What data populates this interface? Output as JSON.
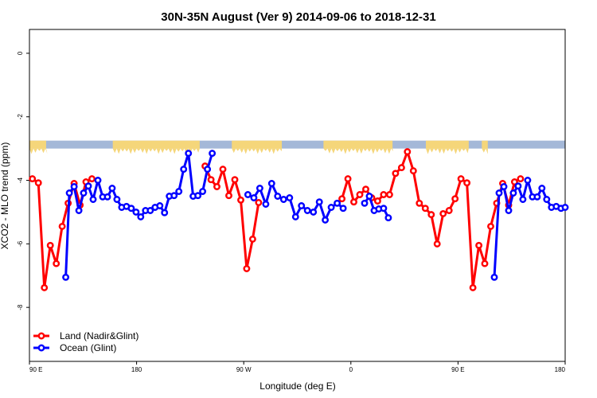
{
  "chart_data": {
    "type": "line",
    "title": "30N-35N August (Ver 9)   2014-09-06 to 2018-12-31",
    "xlabel": "Longitude (deg E)",
    "ylabel": "XCO2 - MLO trend (ppm)",
    "xlim": [
      90,
      540
    ],
    "ylim": [
      -9.7,
      0.75
    ],
    "x_ticks": [
      {
        "value": 90,
        "label": "90 E"
      },
      {
        "value": 180,
        "label": "180"
      },
      {
        "value": 270,
        "label": "90 W"
      },
      {
        "value": 360,
        "label": "0"
      },
      {
        "value": 450,
        "label": "90 E"
      },
      {
        "value": 540,
        "label": "180"
      }
    ],
    "y_ticks": [
      0,
      -2,
      -4,
      -6,
      -8
    ],
    "grid": false,
    "legend_position": "bottom-left",
    "land_ocean_band": {
      "y_range": [
        -3.0,
        -2.75
      ],
      "colors": {
        "land": "#F5D67A",
        "ocean": "#A4B8D8"
      }
    },
    "series": [
      {
        "name": "Land (Nadir&Glint)",
        "color": "#FF0000",
        "segments": [
          {
            "x": [
              92.5,
              97.5,
              102.5,
              107.5,
              112.5,
              117.5,
              122.5,
              127.5,
              132.5,
              137.5,
              142.5
            ],
            "y": [
              -3.95,
              -4.08,
              -7.38,
              -6.05,
              -6.62,
              -5.45,
              -4.72,
              -4.1,
              -4.78,
              -4.05,
              -3.95
            ]
          },
          {
            "x": [
              237.5,
              242.5,
              247.5,
              252.5,
              257.5,
              262.5,
              267.5,
              272.5,
              277.5,
              282.5
            ],
            "y": [
              -3.55,
              -3.98,
              -4.2,
              -3.65,
              -4.48,
              -3.98,
              -4.62,
              -6.78,
              -5.85,
              -4.7
            ]
          },
          {
            "x": [
              352.5,
              357.5,
              362.5,
              367.5,
              372.5,
              377.5,
              382.5,
              387.5,
              392.5,
              397.5,
              402.5,
              407.5,
              412.5,
              417.5,
              422.5,
              427.5,
              432.5,
              437.5,
              442.5,
              447.5,
              452.5,
              457.5,
              462.5,
              467.5,
              472.5,
              477.5,
              482.5,
              487.5,
              492.5,
              497.5,
              502.5
            ],
            "y": [
              -4.58,
              -3.95,
              -4.68,
              -4.45,
              -4.28,
              -4.55,
              -4.65,
              -4.45,
              -4.45,
              -3.78,
              -3.6,
              -3.1,
              -3.7,
              -4.72,
              -4.88,
              -5.08,
              -6.0,
              -5.05,
              -4.95,
              -4.58,
              -3.95,
              -4.08,
              -7.38,
              -6.05,
              -6.62,
              -5.45,
              -4.72,
              -4.1,
              -4.78,
              -4.05,
              -3.95
            ]
          }
        ]
      },
      {
        "name": "Ocean (Glint)",
        "color": "#0000FF",
        "segments": [
          {
            "x": [
              120.5,
              123.5,
              127.5,
              131.5,
              135.5,
              139.5,
              143.5,
              147.5,
              151.5,
              155.5,
              159.5,
              163.5,
              167.5,
              171.5,
              175.5,
              179.5,
              183.5,
              187.5,
              191.5,
              195.5,
              199.5,
              203.5,
              207.5,
              211.5,
              215.5,
              219.5,
              223.5,
              227.5,
              231.5,
              235.5,
              239.5,
              243.5
            ],
            "y": [
              -7.05,
              -4.4,
              -4.2,
              -4.95,
              -4.4,
              -4.18,
              -4.6,
              -4.0,
              -4.52,
              -4.52,
              -4.25,
              -4.6,
              -4.85,
              -4.82,
              -4.88,
              -5.0,
              -5.15,
              -4.95,
              -4.95,
              -4.85,
              -4.8,
              -5.02,
              -4.5,
              -4.48,
              -4.35,
              -3.65,
              -3.15,
              -4.5,
              -4.48,
              -4.35,
              -3.65,
              -3.15
            ]
          },
          {
            "x": [
              273.5,
              278.5,
              283.5,
              288.5,
              293.5,
              298.5,
              303.5,
              308.5,
              313.5,
              318.5,
              323.5,
              328.5,
              333.5,
              338.5,
              343.5,
              348.5,
              353.5
            ],
            "y": [
              -4.45,
              -4.55,
              -4.25,
              -4.75,
              -4.1,
              -4.5,
              -4.6,
              -4.55,
              -5.15,
              -4.8,
              -4.95,
              -5.0,
              -4.68,
              -5.25,
              -4.85,
              -4.72,
              -4.88
            ]
          },
          {
            "x": [
              371.5,
              375.5,
              379.5,
              383.5,
              387.5,
              391.5
            ],
            "y": [
              -4.72,
              -4.5,
              -4.95,
              -4.9,
              -4.88,
              -5.18
            ]
          },
          {
            "x": [
              480.5,
              484.5,
              488.5,
              492.5,
              496.5,
              500.5,
              504.5,
              508.5,
              512.5,
              516.5,
              520.5,
              524.5,
              528.5,
              532.5,
              536.5,
              540.0
            ],
            "y": [
              -7.05,
              -4.4,
              -4.2,
              -4.95,
              -4.4,
              -4.18,
              -4.6,
              -4.0,
              -4.52,
              -4.52,
              -4.25,
              -4.6,
              -4.85,
              -4.82,
              -4.88,
              -4.85
            ]
          }
        ]
      }
    ]
  }
}
